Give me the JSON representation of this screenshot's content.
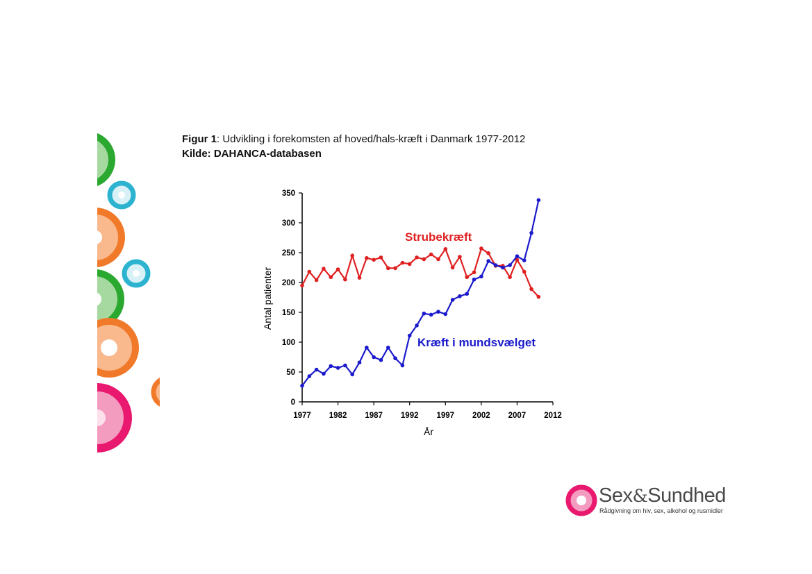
{
  "figure": {
    "caption_label": "Figur 1",
    "caption_text": ": Udvikling i forekomsten af hoved/hals-kræft i Danmark 1977-2012",
    "source_label": "Kilde:",
    "source_text": " DAHANCA-databasen"
  },
  "chart_data": {
    "type": "line",
    "xlabel": "År",
    "ylabel": "Antal patienter",
    "xlim": [
      1977,
      2012
    ],
    "ylim": [
      0,
      350
    ],
    "xticks": [
      1977,
      1982,
      1987,
      1992,
      1997,
      2002,
      2007,
      2012
    ],
    "yticks": [
      0,
      50,
      100,
      150,
      200,
      250,
      300,
      350
    ],
    "grid": false,
    "x": [
      1977,
      1978,
      1979,
      1980,
      1981,
      1982,
      1983,
      1984,
      1985,
      1986,
      1987,
      1988,
      1989,
      1990,
      1991,
      1992,
      1993,
      1994,
      1995,
      1996,
      1997,
      1998,
      1999,
      2000,
      2001,
      2002,
      2003,
      2004,
      2005,
      2006,
      2007,
      2008,
      2009,
      2010
    ],
    "series": [
      {
        "name": "Strubekræft",
        "color": "#e02020",
        "values": [
          195,
          218,
          204,
          223,
          209,
          222,
          205,
          245,
          208,
          241,
          238,
          242,
          224,
          224,
          233,
          231,
          242,
          239,
          247,
          239,
          256,
          225,
          243,
          209,
          217,
          257,
          249,
          228,
          228,
          209,
          238,
          218,
          189,
          176
        ]
      },
      {
        "name": "Kræft i mundsvælget",
        "color": "#1a1acc",
        "values": [
          27,
          43,
          54,
          47,
          60,
          57,
          61,
          46,
          66,
          91,
          75,
          70,
          91,
          73,
          61,
          111,
          128,
          148,
          146,
          151,
          147,
          171,
          177,
          181,
          205,
          210,
          236,
          229,
          225,
          229,
          244,
          237,
          283,
          338
        ]
      }
    ]
  },
  "logo": {
    "name": "Sex",
    "amp": "&",
    "name2": "Sundhed",
    "tagline": "Rådgivning om hiv, sex, alkohol og rusmidler"
  },
  "colors": {
    "green": "#2aa830",
    "green_light": "#a6d9a0",
    "orange": "#f07a2a",
    "orange_light": "#f9b98d",
    "cyan": "#2bb3d0",
    "pink": "#e8196e",
    "pink_light": "#f49bc0"
  }
}
